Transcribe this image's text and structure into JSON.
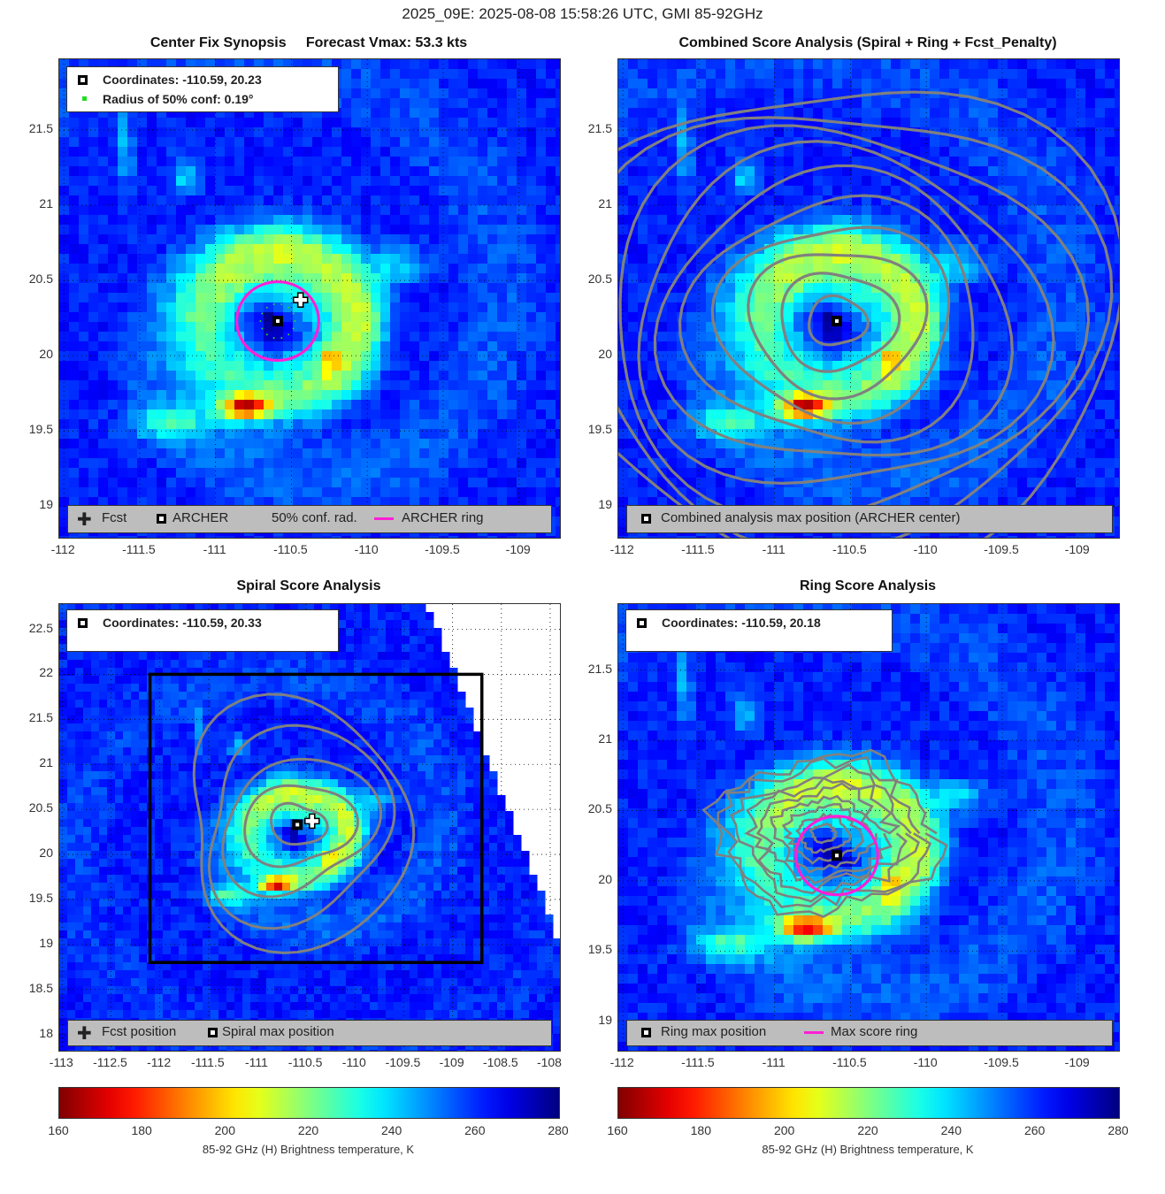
{
  "suptitle": "2025_09E: 2025-08-08 15:58:26 UTC, GMI 85-92GHz",
  "panels": {
    "synopsis": {
      "title": "Center Fix Synopsis     Forecast Vmax: 53.3 kts",
      "legend_top": [
        "Coordinates: -110.59, 20.23",
        "Radius of 50% conf: 0.19°"
      ],
      "legend_bottom": [
        "Fcst",
        "ARCHER",
        "50% conf. rad.",
        "ARCHER ring"
      ]
    },
    "combined": {
      "title": "Combined Score Analysis (Spiral + Ring + Fcst_Penalty)",
      "legend_bottom": [
        "Combined analysis max position (ARCHER center)"
      ]
    },
    "spiral": {
      "title": "Spiral Score Analysis",
      "legend_top": [
        "Coordinates: -110.59, 20.33"
      ],
      "legend_bottom": [
        "Fcst position",
        "Spiral max position"
      ]
    },
    "ring": {
      "title": "Ring Score Analysis",
      "legend_top": [
        "Coordinates: -110.59, 20.18"
      ],
      "legend_bottom": [
        "Ring max position",
        "Max score ring"
      ]
    }
  },
  "colorbar": {
    "ticks": [
      "160",
      "180",
      "200",
      "220",
      "240",
      "260",
      "280"
    ],
    "label": "85-92 GHz (H) Brightness temperature, K",
    "colormap": "jet-reversed"
  },
  "colors": {
    "ring": "#ff1fd6",
    "contour": "#808080",
    "conf_dot": "#22dd22",
    "legend_bg": "#bdbdbd"
  },
  "chart_data": [
    {
      "type": "heatmap",
      "title": "Center Fix Synopsis     Forecast Vmax: 53.3 kts",
      "xticks": [
        "-112",
        "-111.5",
        "-111",
        "-110.5",
        "-110",
        "-109.5",
        "-109"
      ],
      "yticks": [
        "21.5",
        "21",
        "20.5",
        "20",
        "19.5",
        "19"
      ],
      "xlim": [
        -112.03,
        -108.73
      ],
      "ylim": [
        18.79,
        21.97
      ],
      "archer_center": [
        -110.59,
        20.23
      ],
      "forecast_position": [
        -110.44,
        20.37
      ],
      "conf_radius_deg": 0.19,
      "archer_ring_radius_deg": 0.27
    },
    {
      "type": "heatmap",
      "title": "Combined Score Analysis (Spiral + Ring + Fcst_Penalty)",
      "xticks": [
        "-112",
        "-111.5",
        "-111",
        "-110.5",
        "-110",
        "-109.5",
        "-109"
      ],
      "yticks": [
        "21.5",
        "21",
        "20.5",
        "20",
        "19.5",
        "19"
      ],
      "xlim": [
        -112.03,
        -108.73
      ],
      "ylim": [
        18.79,
        21.97
      ],
      "max_position": [
        -110.59,
        20.23
      ]
    },
    {
      "type": "heatmap",
      "title": "Spiral Score Analysis",
      "xticks": [
        "-113",
        "-112.5",
        "-112",
        "-111.5",
        "-111",
        "-110.5",
        "-110",
        "-109.5",
        "-109",
        "-108.5",
        "-108"
      ],
      "yticks": [
        "22.5",
        "22",
        "21.5",
        "21",
        "20.5",
        "20",
        "19.5",
        "19",
        "18.5",
        "18"
      ],
      "xlim": [
        -113.03,
        -107.9
      ],
      "ylim": [
        17.82,
        22.78
      ],
      "spiral_max_position": [
        -110.59,
        20.33
      ],
      "forcast_position": [
        -110.44,
        20.37
      ],
      "analysis_box": {
        "lon": [
          -112.1,
          -108.7
        ],
        "lat": [
          18.8,
          22.0
        ]
      }
    },
    {
      "type": "heatmap",
      "title": "Ring Score Analysis",
      "xticks": [
        "-112",
        "-111.5",
        "-111",
        "-110.5",
        "-110",
        "-109.5",
        "-109"
      ],
      "yticks": [
        "21.5",
        "21",
        "20.5",
        "20",
        "19.5",
        "19"
      ],
      "xlim": [
        -112.03,
        -108.73
      ],
      "ylim": [
        18.79,
        21.97
      ],
      "ring_max_position": [
        -110.59,
        20.18
      ],
      "max_score_ring_radius_deg": 0.27
    }
  ]
}
